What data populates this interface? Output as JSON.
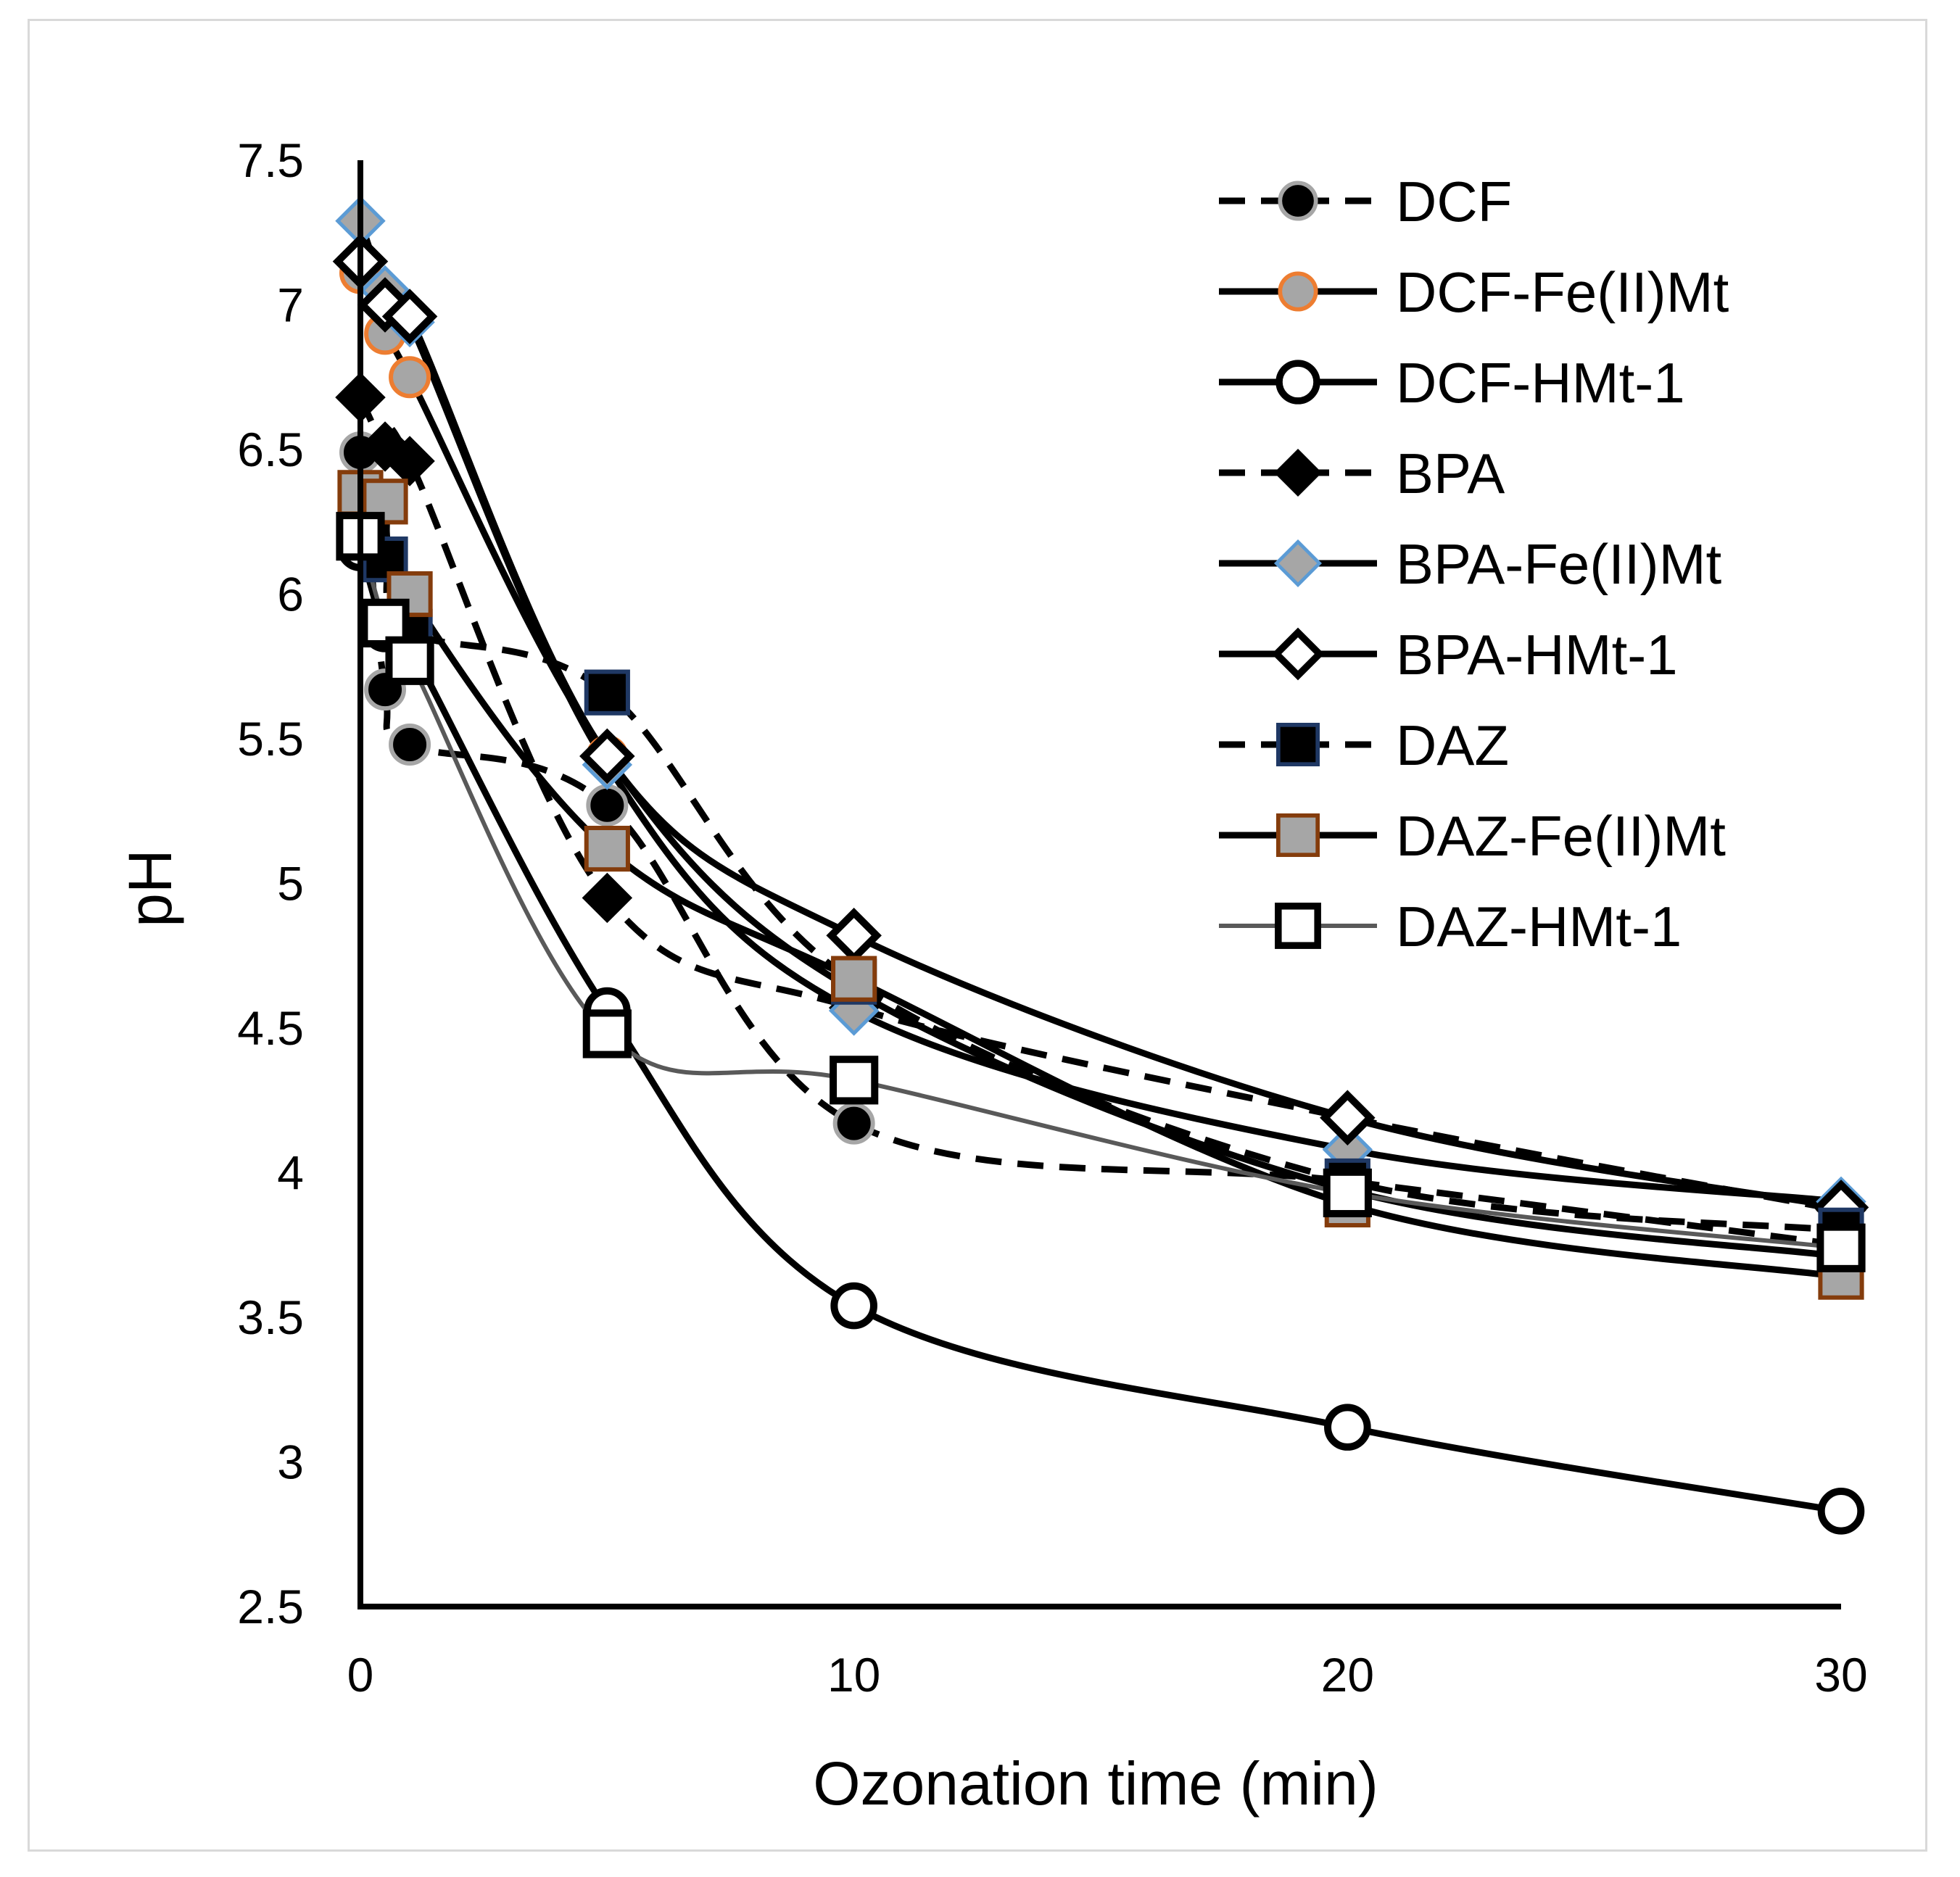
{
  "chart_data": {
    "type": "line",
    "title": "",
    "xlabel": "Ozonation time (min)",
    "ylabel": "pH",
    "xlim": [
      0,
      30
    ],
    "ylim": [
      2.5,
      7.5
    ],
    "xticks": [
      0,
      10,
      20,
      30
    ],
    "yticks": [
      2.5,
      3,
      3.5,
      4,
      4.5,
      5,
      5.5,
      6,
      6.5,
      7,
      7.5
    ],
    "ytick_labels": [
      "2.5",
      "3",
      "3.5",
      "4",
      "4.5",
      "5",
      "5.5",
      "6",
      "6.5",
      "7",
      "7.5"
    ],
    "xtick_labels": [
      "0",
      "10",
      "20",
      "30"
    ],
    "grid": false,
    "legend_position": "top-right",
    "series": [
      {
        "name": "DCF",
        "line": "dashed",
        "line_color": "#000000",
        "marker": "circle",
        "marker_fill": "#000000",
        "marker_stroke": "#a6a6a6",
        "x": [
          0,
          0.5,
          1,
          5,
          10,
          20,
          30
        ],
        "y": [
          6.49,
          5.67,
          5.48,
          5.27,
          4.17,
          3.97,
          3.75
        ]
      },
      {
        "name": "DCF-Fe(II)Mt",
        "line": "solid",
        "line_color": "#000000",
        "marker": "circle",
        "marker_fill": "#a6a6a6",
        "marker_stroke": "#ed7d31",
        "x": [
          0,
          0.5,
          1,
          5,
          10,
          20,
          30
        ],
        "y": [
          7.11,
          6.9,
          6.75,
          5.44,
          4.63,
          3.94,
          3.71
        ]
      },
      {
        "name": "DCF-HMt-1",
        "line": "solid",
        "line_color": "#000000",
        "marker": "open-circle",
        "marker_fill": "#ffffff",
        "marker_stroke": "#000000",
        "x": [
          0,
          0.5,
          1,
          5,
          10,
          20,
          30
        ],
        "y": [
          6.16,
          5.88,
          5.82,
          4.56,
          3.54,
          3.12,
          2.83
        ]
      },
      {
        "name": "BPA",
        "line": "dashed",
        "line_color": "#000000",
        "marker": "diamond",
        "marker_fill": "#000000",
        "marker_stroke": "#000000",
        "x": [
          0,
          0.5,
          1,
          5,
          10,
          20,
          30
        ],
        "y": [
          6.68,
          6.51,
          6.46,
          4.95,
          4.57,
          4.19,
          3.87
        ]
      },
      {
        "name": "BPA-Fe(II)Mt",
        "line": "solid",
        "line_color": "#000000",
        "marker": "diamond",
        "marker_fill": "#a6a6a6",
        "marker_stroke": "#5b9bd5",
        "x": [
          0,
          0.5,
          1,
          5,
          10,
          20,
          30
        ],
        "y": [
          7.29,
          7.05,
          6.94,
          5.41,
          4.56,
          4.08,
          3.9
        ]
      },
      {
        "name": "BPA-HMt-1",
        "line": "solid",
        "line_color": "#000000",
        "marker": "open-diamond",
        "marker_fill": "#ffffff",
        "marker_stroke": "#000000",
        "x": [
          0,
          0.5,
          1,
          5,
          10,
          20,
          30
        ],
        "y": [
          7.15,
          7.0,
          6.96,
          5.44,
          4.82,
          4.19,
          3.88
        ]
      },
      {
        "name": "DAZ",
        "line": "dashed",
        "line_color": "#000000",
        "marker": "square",
        "marker_fill": "#000000",
        "marker_stroke": "#1f3864",
        "x": [
          0,
          0.5,
          1,
          5,
          10,
          20,
          30
        ],
        "y": [
          6.2,
          6.12,
          5.87,
          5.66,
          4.66,
          3.97,
          3.8
        ]
      },
      {
        "name": "DAZ-Fe(II)Mt",
        "line": "solid",
        "line_color": "#000000",
        "marker": "square",
        "marker_fill": "#a6a6a6",
        "marker_stroke": "#843c0c",
        "x": [
          0,
          0.5,
          1,
          5,
          10,
          20,
          30
        ],
        "y": [
          6.35,
          6.32,
          6.0,
          5.12,
          4.67,
          3.89,
          3.64
        ]
      },
      {
        "name": "DAZ-HMt-1",
        "line": "solid",
        "line_color": "#595959",
        "marker": "open-square",
        "marker_fill": "#ffffff",
        "marker_stroke": "#000000",
        "x": [
          0,
          0.5,
          1,
          5,
          10,
          20,
          30
        ],
        "y": [
          6.2,
          5.9,
          5.77,
          4.48,
          4.32,
          3.93,
          3.74
        ]
      }
    ]
  }
}
